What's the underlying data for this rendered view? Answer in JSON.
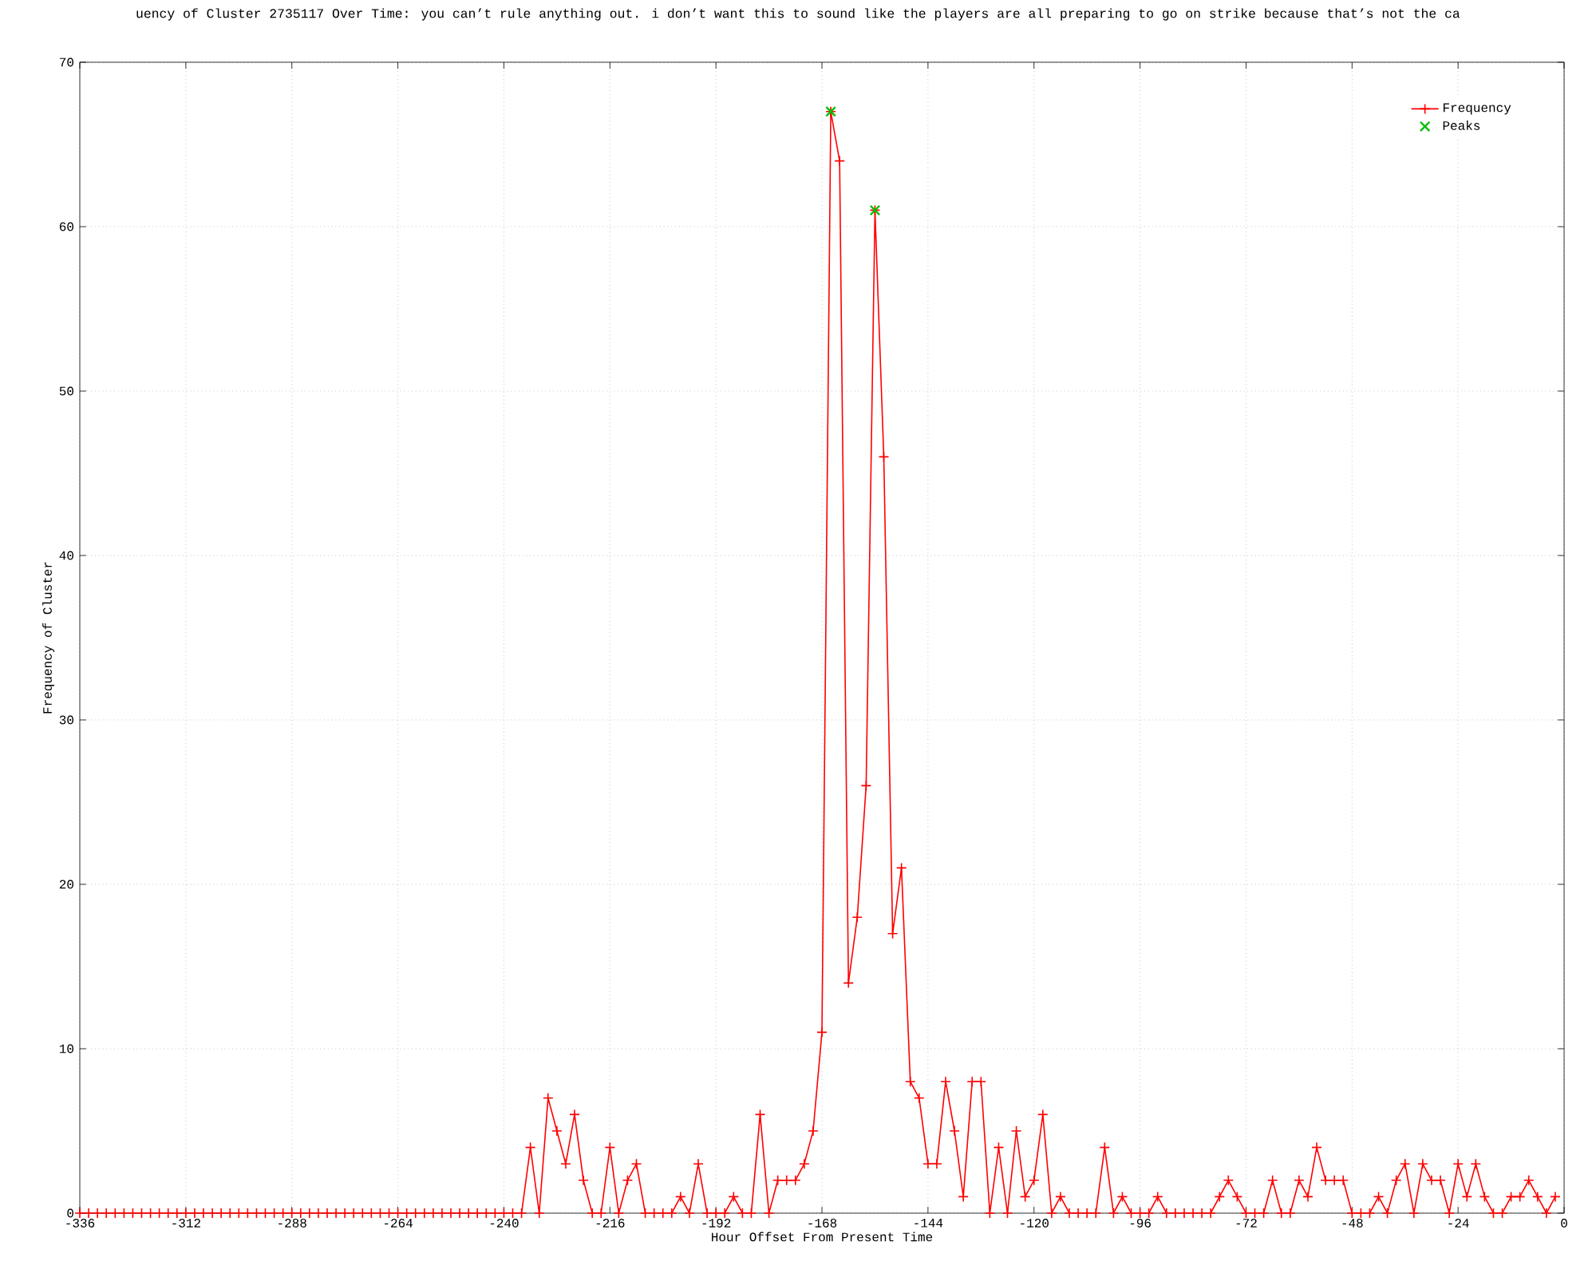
{
  "chart_data": {
    "type": "line",
    "title": "uency of Cluster 2735117 Over Time: you can’t rule anything out. i don’t want this to sound like the players are all preparing to go on strike because that’s not the ca",
    "xlabel": "Hour Offset From Present Time",
    "ylabel": "Frequency of Cluster",
    "xlim": [
      -336,
      0
    ],
    "ylim": [
      0,
      70
    ],
    "xticks": [
      -336,
      -312,
      -288,
      -264,
      -240,
      -216,
      -192,
      -168,
      -144,
      -120,
      -96,
      -72,
      -48,
      -24,
      0
    ],
    "yticks": [
      0,
      10,
      20,
      30,
      40,
      50,
      60,
      70
    ],
    "grid": true,
    "legend": "top right",
    "series": [
      {
        "name": "Frequency",
        "color": "#ff0000",
        "marker": "cross",
        "x": [
          -336,
          -334,
          -332,
          -330,
          -328,
          -326,
          -324,
          -322,
          -320,
          -318,
          -316,
          -314,
          -312,
          -310,
          -308,
          -306,
          -304,
          -302,
          -300,
          -298,
          -296,
          -294,
          -292,
          -290,
          -288,
          -286,
          -284,
          -282,
          -280,
          -278,
          -276,
          -274,
          -272,
          -270,
          -268,
          -266,
          -264,
          -262,
          -260,
          -258,
          -256,
          -254,
          -252,
          -250,
          -248,
          -246,
          -244,
          -242,
          -240,
          -238,
          -236,
          -234,
          -232,
          -230,
          -228,
          -226,
          -224,
          -222,
          -220,
          -218,
          -216,
          -214,
          -212,
          -210,
          -208,
          -206,
          -204,
          -202,
          -200,
          -198,
          -196,
          -194,
          -192,
          -190,
          -188,
          -186,
          -184,
          -182,
          -180,
          -178,
          -176,
          -174,
          -172,
          -170,
          -168,
          -166,
          -164,
          -162,
          -160,
          -158,
          -156,
          -154,
          -152,
          -150,
          -148,
          -146,
          -144,
          -142,
          -140,
          -138,
          -136,
          -134,
          -132,
          -130,
          -128,
          -126,
          -124,
          -122,
          -120,
          -118,
          -116,
          -114,
          -112,
          -110,
          -108,
          -106,
          -104,
          -102,
          -100,
          -98,
          -96,
          -94,
          -92,
          -90,
          -88,
          -86,
          -84,
          -82,
          -80,
          -78,
          -76,
          -74,
          -72,
          -70,
          -68,
          -66,
          -64,
          -62,
          -60,
          -58,
          -56,
          -54,
          -52,
          -50,
          -48,
          -46,
          -44,
          -42,
          -40,
          -38,
          -36,
          -34,
          -32,
          -30,
          -28,
          -26,
          -24,
          -22,
          -20,
          -18,
          -16,
          -14,
          -12,
          -10,
          -8,
          -6,
          -4,
          -2
        ],
        "values": [
          0,
          0,
          0,
          0,
          0,
          0,
          0,
          0,
          0,
          0,
          0,
          0,
          0,
          0,
          0,
          0,
          0,
          0,
          0,
          0,
          0,
          0,
          0,
          0,
          0,
          0,
          0,
          0,
          0,
          0,
          0,
          0,
          0,
          0,
          0,
          0,
          0,
          0,
          0,
          0,
          0,
          0,
          0,
          0,
          0,
          0,
          0,
          0,
          0,
          0,
          0,
          4,
          0,
          7,
          5,
          3,
          6,
          2,
          0,
          0,
          4,
          0,
          2,
          3,
          0,
          0,
          0,
          0,
          1,
          0,
          3,
          0,
          0,
          0,
          1,
          0,
          0,
          6,
          0,
          2,
          2,
          2,
          3,
          5,
          11,
          67,
          64,
          14,
          18,
          26,
          61,
          46,
          17,
          21,
          8,
          7,
          3,
          3,
          8,
          5,
          1,
          8,
          8,
          0,
          4,
          0,
          5,
          1,
          2,
          6,
          0,
          1,
          0,
          0,
          0,
          0,
          4,
          0,
          1,
          0,
          0,
          0,
          1,
          0,
          0,
          0,
          0,
          0,
          0,
          1,
          2,
          1,
          0,
          0,
          0,
          2,
          0,
          0,
          2,
          1,
          4,
          2,
          2,
          2,
          0,
          0,
          0,
          1,
          0,
          2,
          3,
          0,
          3,
          2,
          2,
          0,
          3,
          1,
          3,
          1,
          0,
          0,
          1,
          1,
          2,
          1,
          0,
          1
        ]
      },
      {
        "name": "Peaks",
        "type": "scatter",
        "color": "#00c000",
        "marker": "cross",
        "x": [
          -166,
          -156
        ],
        "values": [
          67,
          61
        ]
      }
    ]
  }
}
